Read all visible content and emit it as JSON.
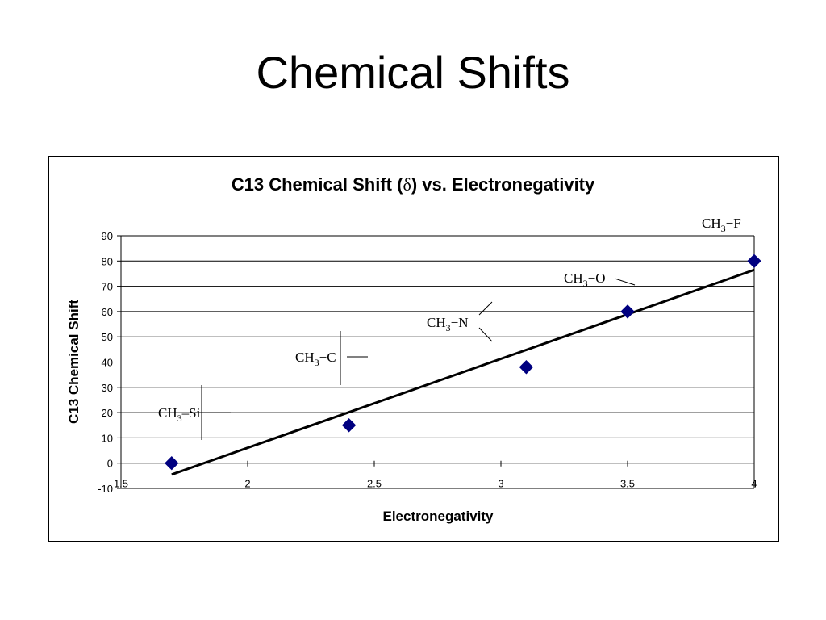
{
  "slide": {
    "title": "Chemical Shifts"
  },
  "chart_data": {
    "type": "scatter",
    "title_prefix": "C13 Chemical Shift (",
    "title_symbol": "δ",
    "title_suffix": ") vs. Electronegativity",
    "xlabel": "Electronegativity",
    "ylabel": "C13 Chemical Shift",
    "xlim": [
      1.5,
      4
    ],
    "ylim": [
      -10,
      90
    ],
    "x_ticks": [
      1.5,
      2,
      2.5,
      3,
      3.5,
      4
    ],
    "x_tick_labels": [
      "1.5",
      "2",
      "2.5",
      "3",
      "3.5",
      "4"
    ],
    "y_ticks": [
      -10,
      0,
      10,
      20,
      30,
      40,
      50,
      60,
      70,
      80,
      90
    ],
    "y_tick_labels": [
      "-10",
      "0",
      "10",
      "20",
      "30",
      "40",
      "50",
      "60",
      "70",
      "80",
      "90"
    ],
    "grid": "horizontal",
    "series": [
      {
        "points": [
          {
            "x": 1.7,
            "y": 0
          },
          {
            "x": 2.4,
            "y": 15
          },
          {
            "x": 3.1,
            "y": 38
          },
          {
            "x": 3.5,
            "y": 60
          },
          {
            "x": 4.0,
            "y": 80
          }
        ],
        "color": "#000080",
        "marker": "diamond"
      }
    ],
    "trendline": {
      "from": {
        "x": 1.7,
        "y": -4.5
      },
      "to": {
        "x": 4.0,
        "y": 76.5
      },
      "color": "#000000"
    },
    "annotations": [
      {
        "group": "CH",
        "sub": "3",
        "atom": "Si",
        "bond": "–"
      },
      {
        "group": "CH",
        "sub": "3",
        "atom": "C",
        "bond": "−"
      },
      {
        "group": "CH",
        "sub": "3",
        "atom": "N",
        "bond": "−"
      },
      {
        "group": "CH",
        "sub": "3",
        "atom": "O",
        "bond": "−"
      },
      {
        "group": "CH",
        "sub": "3",
        "atom": "F",
        "bond": "−"
      }
    ]
  }
}
